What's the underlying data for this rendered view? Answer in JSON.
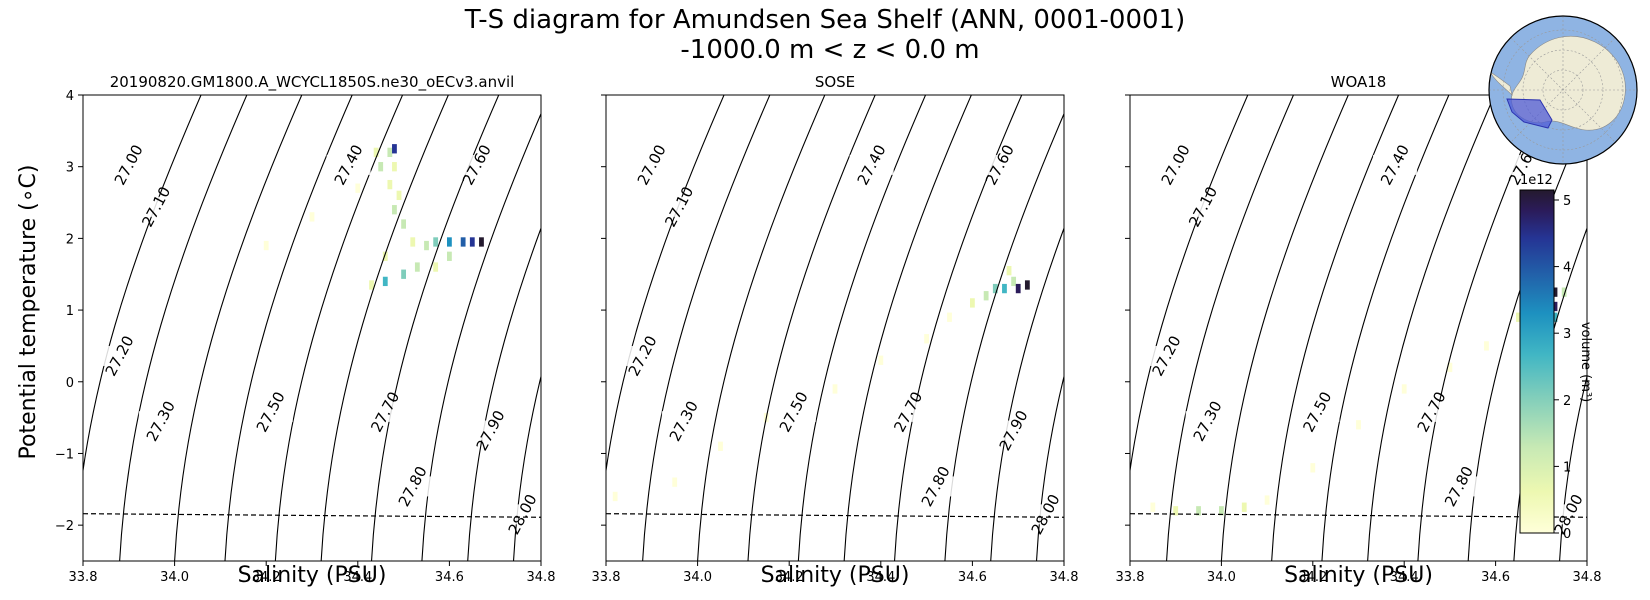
{
  "figure": {
    "title_line1": "T-S diagram for Amundsen Sea Shelf (ANN, 0001-0001)",
    "title_line2": "-1000.0 m < z < 0.0 m",
    "ylabel": "Potential temperature (∘C)",
    "xlabel": "Salinity (PSU)"
  },
  "colorbar": {
    "label": "volume (m³)",
    "exponent": "1e12",
    "ticks": [
      0,
      1,
      2,
      3,
      4,
      5
    ],
    "max": 5.15,
    "colormap": [
      "#ffffd9",
      "#edf8b1",
      "#c7e9b4",
      "#7fcdbb",
      "#41b6c4",
      "#1d91c0",
      "#225ea8",
      "#253494",
      "#2b1b5a",
      "#241a2e"
    ]
  },
  "inset_map": {
    "description_icon": "antarctica-locator-map",
    "ocean_color": "#8fb4e3",
    "land_color": "#eeebd6",
    "region_color": "#4f5bd5"
  },
  "chart_data": [
    {
      "type": "heatmap",
      "title": "20190820.GM1800.A_WCYCL1850S.ne30_oECv3.anvil",
      "xlabel": "Salinity (PSU)",
      "ylabel": "Potential temperature (∘C)",
      "xlim": [
        33.8,
        34.8
      ],
      "ylim": [
        -2.5,
        4
      ],
      "xticks": [
        "33.8",
        "34.0",
        "34.2",
        "34.4",
        "34.6",
        "34.8"
      ],
      "yticks": [
        "−2",
        "−1",
        "0",
        "1",
        "2",
        "3",
        "4"
      ],
      "freezing_line": [
        [
          33.8,
          -1.84
        ],
        [
          34.8,
          -1.89
        ]
      ],
      "density_contours": [
        "27.00",
        "27.10",
        "27.20",
        "27.30",
        "27.40",
        "27.50",
        "27.60",
        "27.70",
        "27.80",
        "27.90",
        "28.00"
      ],
      "bins": [
        {
          "s": 34.44,
          "t": 3.2,
          "v": 0.3
        },
        {
          "s": 34.47,
          "t": 3.2,
          "v": 0.9
        },
        {
          "s": 34.48,
          "t": 3.25,
          "v": 4.0
        },
        {
          "s": 34.45,
          "t": 3.0,
          "v": 1.2
        },
        {
          "s": 34.48,
          "t": 3.0,
          "v": 0.6
        },
        {
          "s": 34.47,
          "t": 2.75,
          "v": 0.5
        },
        {
          "s": 34.49,
          "t": 2.6,
          "v": 0.8
        },
        {
          "s": 34.48,
          "t": 2.4,
          "v": 1.0
        },
        {
          "s": 34.5,
          "t": 2.2,
          "v": 1.3
        },
        {
          "s": 34.52,
          "t": 1.95,
          "v": 0.8
        },
        {
          "s": 34.55,
          "t": 1.9,
          "v": 1.0
        },
        {
          "s": 34.57,
          "t": 1.95,
          "v": 2.0
        },
        {
          "s": 34.6,
          "t": 1.95,
          "v": 3.0
        },
        {
          "s": 34.63,
          "t": 1.95,
          "v": 3.5
        },
        {
          "s": 34.65,
          "t": 1.95,
          "v": 4.2
        },
        {
          "s": 34.67,
          "t": 1.95,
          "v": 5.1
        },
        {
          "s": 34.6,
          "t": 1.75,
          "v": 0.9
        },
        {
          "s": 34.57,
          "t": 1.6,
          "v": 0.8
        },
        {
          "s": 34.53,
          "t": 1.6,
          "v": 1.2
        },
        {
          "s": 34.5,
          "t": 1.5,
          "v": 1.8
        },
        {
          "s": 34.46,
          "t": 1.4,
          "v": 2.5
        },
        {
          "s": 34.43,
          "t": 1.35,
          "v": 0.8
        },
        {
          "s": 34.46,
          "t": 1.75,
          "v": 0.7
        },
        {
          "s": 34.4,
          "t": 2.7,
          "v": 0.1
        },
        {
          "s": 34.3,
          "t": 2.3,
          "v": 0.05
        },
        {
          "s": 34.2,
          "t": 1.9,
          "v": 0.05
        }
      ]
    },
    {
      "type": "heatmap",
      "title": "SOSE",
      "xlabel": "Salinity (PSU)",
      "ylabel": "",
      "xlim": [
        33.8,
        34.8
      ],
      "ylim": [
        -2.5,
        4
      ],
      "xticks": [
        "33.8",
        "34.0",
        "34.2",
        "34.4",
        "34.6",
        "34.8"
      ],
      "yticks": [],
      "freezing_line": [
        [
          33.8,
          -1.84
        ],
        [
          34.8,
          -1.89
        ]
      ],
      "density_contours": [
        "27.00",
        "27.10",
        "27.20",
        "27.30",
        "27.40",
        "27.50",
        "27.60",
        "27.70",
        "27.80",
        "27.90",
        "28.00"
      ],
      "bins": [
        {
          "s": 33.82,
          "t": -1.6,
          "v": 0.05
        },
        {
          "s": 33.95,
          "t": -1.4,
          "v": 0.05
        },
        {
          "s": 34.05,
          "t": -0.9,
          "v": 0.05
        },
        {
          "s": 34.15,
          "t": -0.5,
          "v": 0.05
        },
        {
          "s": 34.3,
          "t": -0.1,
          "v": 0.1
        },
        {
          "s": 34.4,
          "t": 0.3,
          "v": 0.1
        },
        {
          "s": 34.5,
          "t": 0.6,
          "v": 0.15
        },
        {
          "s": 34.55,
          "t": 0.9,
          "v": 0.2
        },
        {
          "s": 34.6,
          "t": 1.1,
          "v": 0.4
        },
        {
          "s": 34.63,
          "t": 1.2,
          "v": 1.0
        },
        {
          "s": 34.65,
          "t": 1.3,
          "v": 1.6
        },
        {
          "s": 34.67,
          "t": 1.3,
          "v": 2.5
        },
        {
          "s": 34.69,
          "t": 1.4,
          "v": 1.2
        },
        {
          "s": 34.7,
          "t": 1.3,
          "v": 4.5
        },
        {
          "s": 34.72,
          "t": 1.35,
          "v": 5.2
        },
        {
          "s": 34.68,
          "t": 1.55,
          "v": 0.6
        }
      ]
    },
    {
      "type": "heatmap",
      "title": "WOA18",
      "xlabel": "Salinity (PSU)",
      "ylabel": "",
      "xlim": [
        33.8,
        34.8
      ],
      "ylim": [
        -2.5,
        4
      ],
      "xticks": [
        "33.8",
        "34.0",
        "34.2",
        "34.4",
        "34.6",
        "34.8"
      ],
      "yticks": [],
      "freezing_line": [
        [
          33.8,
          -1.84
        ],
        [
          34.8,
          -1.89
        ]
      ],
      "density_contours": [
        "27.00",
        "27.10",
        "27.20",
        "27.30",
        "27.40",
        "27.50",
        "27.60",
        "27.70",
        "27.80",
        "27.90",
        "28.00"
      ],
      "bins": [
        {
          "s": 33.85,
          "t": -1.75,
          "v": 0.1
        },
        {
          "s": 33.9,
          "t": -1.8,
          "v": 0.5
        },
        {
          "s": 33.95,
          "t": -1.8,
          "v": 1.4
        },
        {
          "s": 34.0,
          "t": -1.8,
          "v": 1.0
        },
        {
          "s": 34.05,
          "t": -1.75,
          "v": 0.5
        },
        {
          "s": 34.1,
          "t": -1.65,
          "v": 0.2
        },
        {
          "s": 34.2,
          "t": -1.2,
          "v": 0.1
        },
        {
          "s": 34.3,
          "t": -0.6,
          "v": 0.1
        },
        {
          "s": 34.4,
          "t": -0.1,
          "v": 0.1
        },
        {
          "s": 34.5,
          "t": 0.2,
          "v": 0.15
        },
        {
          "s": 34.58,
          "t": 0.5,
          "v": 0.2
        },
        {
          "s": 34.65,
          "t": 0.9,
          "v": 0.3
        },
        {
          "s": 34.7,
          "t": 1.2,
          "v": 0.6
        },
        {
          "s": 34.71,
          "t": 1.55,
          "v": 0.7
        },
        {
          "s": 34.73,
          "t": 1.25,
          "v": 5.0
        },
        {
          "s": 34.73,
          "t": 1.05,
          "v": 4.6
        },
        {
          "s": 34.73,
          "t": 0.9,
          "v": 2.5
        },
        {
          "s": 34.75,
          "t": 1.25,
          "v": 1.4
        }
      ]
    }
  ]
}
